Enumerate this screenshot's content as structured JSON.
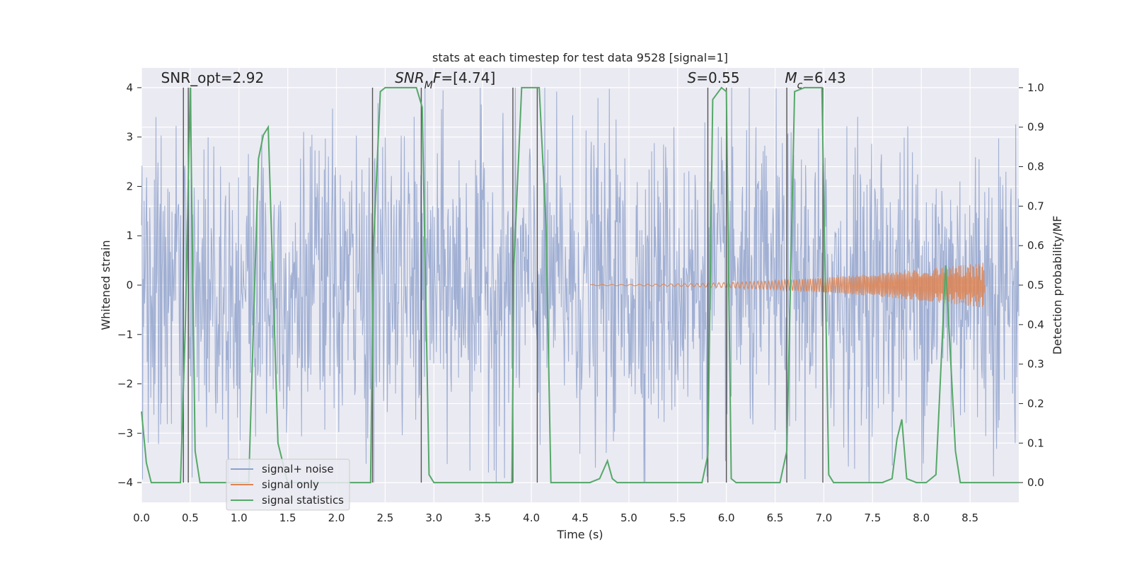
{
  "chart_data": {
    "type": "line",
    "title": "stats at each timestep for test data 9528 [signal=1]",
    "xlabel": "Time (s)",
    "ylabel_left": "Whitened strain",
    "ylabel_right": "Detection probability/MF",
    "xlim": [
      0.0,
      9.0
    ],
    "ylim_left": [
      -4.4,
      4.4
    ],
    "ylim_right": [
      -0.05,
      1.05
    ],
    "x_ticks": [
      0.0,
      0.5,
      1.0,
      1.5,
      2.0,
      2.5,
      3.0,
      3.5,
      4.0,
      4.5,
      5.0,
      5.5,
      6.0,
      6.5,
      7.0,
      7.5,
      8.0,
      8.5
    ],
    "x_tick_labels": [
      "0.0",
      "0.5",
      "1.0",
      "1.5",
      "2.0",
      "2.5",
      "3.0",
      "3.5",
      "4.0",
      "4.5",
      "5.0",
      "5.5",
      "6.0",
      "6.5",
      "7.0",
      "7.5",
      "8.0",
      "8.5"
    ],
    "y_left_ticks": [
      -4,
      -3,
      -2,
      -1,
      0,
      1,
      2,
      3,
      4
    ],
    "y_left_tick_labels": [
      "−4",
      "−3",
      "−2",
      "−1",
      "0",
      "1",
      "2",
      "3",
      "4"
    ],
    "y_right_ticks": [
      0.0,
      0.1,
      0.2,
      0.3,
      0.4,
      0.5,
      0.6,
      0.7,
      0.8,
      0.9,
      1.0
    ],
    "y_right_tick_labels": [
      "0.0",
      "0.1",
      "0.2",
      "0.3",
      "0.4",
      "0.5",
      "0.6",
      "0.7",
      "0.8",
      "0.9",
      "1.0"
    ],
    "grid": true,
    "legend_location": "lower-left",
    "annotations": [
      {
        "id": "snr-opt",
        "parts": [
          {
            "t": "SNR_opt=2.92",
            "i": false
          }
        ],
        "x": 0.2,
        "y": 4.1
      },
      {
        "id": "snr-mf",
        "parts": [
          {
            "t": "SNR",
            "i": true
          },
          {
            "t": "M",
            "i": true,
            "sub": true
          },
          {
            "t": "F",
            "i": true
          },
          {
            "t": "=[4.74]",
            "i": false
          }
        ],
        "x": 2.6,
        "y": 4.1
      },
      {
        "id": "s-value",
        "parts": [
          {
            "t": "S",
            "i": true
          },
          {
            "t": "=0.55",
            "i": false
          }
        ],
        "x": 5.6,
        "y": 4.1
      },
      {
        "id": "mc-value",
        "parts": [
          {
            "t": "M",
            "i": true
          },
          {
            "t": "c",
            "i": true,
            "sub": true
          },
          {
            "t": "=6.43",
            "i": false
          }
        ],
        "x": 6.6,
        "y": 4.1
      }
    ],
    "vertical_lines_x": [
      0.43,
      0.48,
      2.37,
      2.87,
      3.81,
      4.06,
      5.81,
      6.0,
      6.62,
      6.99
    ],
    "series": [
      {
        "name": "signal+ noise",
        "color": "#8da0cb",
        "kind": "noise",
        "x_range": [
          0.0,
          9.0
        ],
        "samples": 1700,
        "amplitude_sd": 1.6
      },
      {
        "name": "signal only",
        "color": "#dd8452",
        "kind": "chirp",
        "x_start": 4.6,
        "x_end": 8.65,
        "y_envelope_end": 0.45
      },
      {
        "name": "signal statistics",
        "color": "#55a868",
        "axis": "right",
        "x": [
          0.0,
          0.05,
          0.1,
          0.2,
          0.3,
          0.4,
          0.45,
          0.5,
          0.55,
          0.6,
          0.8,
          1.0,
          1.1,
          1.2,
          1.25,
          1.3,
          1.35,
          1.4,
          1.5,
          1.6,
          1.8,
          2.0,
          2.2,
          2.35,
          2.38,
          2.45,
          2.5,
          2.7,
          2.82,
          2.88,
          2.95,
          3.0,
          3.2,
          3.5,
          3.8,
          3.82,
          3.9,
          4.08,
          4.15,
          4.2,
          4.4,
          4.6,
          4.7,
          4.78,
          4.83,
          4.88,
          4.95,
          5.2,
          5.5,
          5.75,
          5.81,
          5.86,
          5.95,
          6.0,
          6.05,
          6.1,
          6.3,
          6.55,
          6.62,
          6.7,
          6.8,
          6.98,
          7.05,
          7.1,
          7.3,
          7.6,
          7.7,
          7.75,
          7.8,
          7.85,
          7.95,
          8.05,
          8.15,
          8.25,
          8.35,
          8.4,
          8.6,
          9.0
        ],
        "y": [
          0.18,
          0.05,
          0.0,
          0.0,
          0.0,
          0.0,
          0.4,
          1.0,
          0.08,
          0.0,
          0.0,
          0.0,
          0.0,
          0.82,
          0.88,
          0.9,
          0.5,
          0.1,
          0.0,
          0.0,
          0.0,
          0.0,
          0.0,
          0.0,
          0.6,
          0.99,
          1.0,
          1.0,
          1.0,
          0.95,
          0.02,
          0.0,
          0.0,
          0.0,
          0.0,
          0.55,
          1.0,
          1.0,
          0.65,
          0.0,
          0.0,
          0.0,
          0.01,
          0.055,
          0.01,
          0.0,
          0.0,
          0.0,
          0.0,
          0.0,
          0.07,
          0.97,
          1.0,
          0.99,
          0.01,
          0.0,
          0.0,
          0.0,
          0.08,
          0.99,
          1.0,
          1.0,
          0.02,
          0.0,
          0.0,
          0.0,
          0.01,
          0.11,
          0.16,
          0.01,
          0.0,
          0.0,
          0.02,
          0.55,
          0.08,
          0.0,
          0.0,
          0.0
        ]
      }
    ]
  }
}
